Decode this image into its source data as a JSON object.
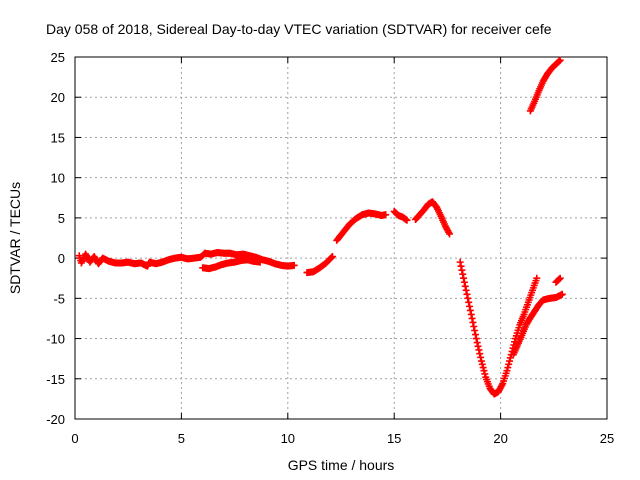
{
  "chart_data": {
    "type": "scatter",
    "title": "Day 058 of 2018, Sidereal Day-to-day VTEC variation (SDTVAR) for receiver cefe",
    "xlabel": "GPS time / hours",
    "ylabel": "SDTVAR / TECUs",
    "xlim": [
      0,
      25
    ],
    "ylim": [
      -20,
      25
    ],
    "xticks": [
      0,
      5,
      10,
      15,
      20,
      25
    ],
    "yticks": [
      -20,
      -15,
      -10,
      -5,
      0,
      5,
      10,
      15,
      20,
      25
    ],
    "grid": true,
    "marker": "+",
    "color": "#ff0000",
    "series": [
      {
        "name": "SDTVAR",
        "segments": [
          [
            [
              0.2,
              0.3
            ],
            [
              0.3,
              -0.6
            ],
            [
              0.5,
              0.5
            ],
            [
              0.7,
              -0.5
            ],
            [
              0.9,
              0.2
            ],
            [
              1.1,
              -0.7
            ],
            [
              1.3,
              0
            ],
            [
              1.6,
              -0.4
            ],
            [
              1.9,
              -0.6
            ],
            [
              2.2,
              -0.6
            ],
            [
              2.5,
              -0.5
            ],
            [
              2.8,
              -0.7
            ],
            [
              3.1,
              -0.6
            ],
            [
              3.4,
              -1.0
            ],
            [
              3.5,
              -0.5
            ],
            [
              3.8,
              -0.7
            ],
            [
              4.1,
              -0.5
            ],
            [
              4.4,
              -0.2
            ],
            [
              4.7,
              0
            ],
            [
              5.0,
              0.1
            ],
            [
              5.3,
              -0.1
            ],
            [
              5.6,
              0
            ],
            [
              5.9,
              0.1
            ],
            [
              6.1,
              0.6
            ],
            [
              6.4,
              0.5
            ],
            [
              6.7,
              0.7
            ],
            [
              7.0,
              0.6
            ],
            [
              7.3,
              0.6
            ],
            [
              7.6,
              0.4
            ],
            [
              7.9,
              0.5
            ],
            [
              8.2,
              0.3
            ],
            [
              8.5,
              0.1
            ],
            [
              8.8,
              -0.2
            ],
            [
              9.1,
              -0.4
            ],
            [
              9.4,
              -0.7
            ],
            [
              9.7,
              -0.9
            ],
            [
              10.0,
              -1.0
            ],
            [
              10.3,
              -0.9
            ]
          ],
          [
            [
              6.0,
              -1.2
            ],
            [
              6.3,
              -1.3
            ],
            [
              6.6,
              -1.1
            ],
            [
              6.9,
              -0.8
            ],
            [
              7.2,
              -0.6
            ],
            [
              7.5,
              -0.5
            ],
            [
              7.8,
              -0.3
            ],
            [
              8.1,
              -0.2
            ],
            [
              8.4,
              -0.4
            ],
            [
              8.7,
              -0.5
            ]
          ],
          [
            [
              10.9,
              -1.8
            ],
            [
              11.2,
              -1.7
            ],
            [
              11.5,
              -1.2
            ],
            [
              11.8,
              -0.6
            ],
            [
              12.1,
              0.2
            ]
          ],
          [
            [
              12.3,
              2.2
            ],
            [
              12.6,
              3.2
            ],
            [
              12.9,
              4.2
            ],
            [
              13.2,
              4.9
            ],
            [
              13.5,
              5.4
            ],
            [
              13.8,
              5.6
            ],
            [
              14.1,
              5.5
            ],
            [
              14.4,
              5.3
            ],
            [
              14.6,
              5.4
            ]
          ],
          [
            [
              15.0,
              5.8
            ],
            [
              15.2,
              5.3
            ],
            [
              15.4,
              5.1
            ],
            [
              15.6,
              4.7
            ]
          ],
          [
            [
              16.0,
              4.8
            ],
            [
              16.2,
              5.4
            ],
            [
              16.4,
              6.0
            ],
            [
              16.6,
              6.7
            ],
            [
              16.8,
              7.0
            ],
            [
              17.0,
              6.3
            ],
            [
              17.2,
              5.2
            ],
            [
              17.4,
              4.0
            ],
            [
              17.6,
              3.0
            ]
          ],
          [
            [
              18.1,
              -0.5
            ],
            [
              18.3,
              -3.0
            ],
            [
              18.5,
              -5.5
            ],
            [
              18.7,
              -8.0
            ],
            [
              18.9,
              -10.5
            ],
            [
              19.1,
              -12.8
            ],
            [
              19.3,
              -14.8
            ],
            [
              19.5,
              -16.2
            ],
            [
              19.7,
              -16.9
            ],
            [
              19.9,
              -16.6
            ],
            [
              20.1,
              -15.6
            ],
            [
              20.3,
              -14.0
            ],
            [
              20.5,
              -12.0
            ],
            [
              20.7,
              -10.0
            ],
            [
              20.9,
              -8.3
            ],
            [
              21.1,
              -7.0
            ],
            [
              21.3,
              -5.5
            ],
            [
              21.5,
              -4.0
            ],
            [
              21.7,
              -2.5
            ]
          ],
          [
            [
              20.6,
              -12.0
            ],
            [
              20.8,
              -10.8
            ],
            [
              21.0,
              -9.6
            ],
            [
              21.2,
              -8.3
            ],
            [
              21.4,
              -7.4
            ],
            [
              21.6,
              -6.6
            ],
            [
              21.8,
              -5.8
            ],
            [
              22.0,
              -5.2
            ],
            [
              22.3,
              -5.0
            ],
            [
              22.6,
              -4.9
            ],
            [
              22.9,
              -4.5
            ]
          ],
          [
            [
              22.6,
              -3.0
            ],
            [
              22.8,
              -2.5
            ]
          ],
          [
            [
              21.4,
              18.3
            ],
            [
              21.6,
              19.5
            ],
            [
              21.8,
              20.8
            ],
            [
              22.0,
              22.0
            ],
            [
              22.2,
              22.9
            ],
            [
              22.4,
              23.6
            ],
            [
              22.6,
              24.1
            ],
            [
              22.8,
              24.6
            ]
          ]
        ]
      }
    ]
  }
}
